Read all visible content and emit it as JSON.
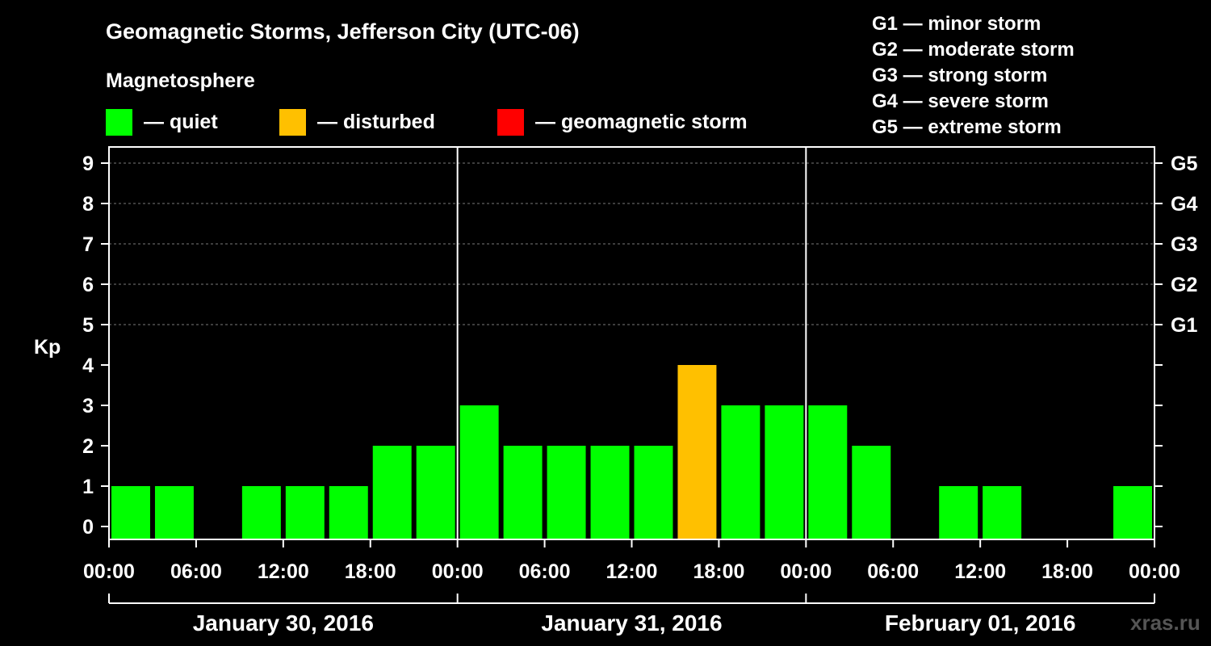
{
  "title": "Geomagnetic Storms, Jefferson City (UTC-06)",
  "subtitle": "Magnetosphere",
  "legend": [
    {
      "label": "— quiet",
      "color": "#00ff00"
    },
    {
      "label": "— disturbed",
      "color": "#ffc000"
    },
    {
      "label": "— geomagnetic storm",
      "color": "#ff0000"
    }
  ],
  "g_scale_legend": [
    "G1 — minor storm",
    "G2 — moderate storm",
    "G3 — strong storm",
    "G4 — severe storm",
    "G5 — extreme storm"
  ],
  "watermark": "xras.ru",
  "chart_data": {
    "type": "bar",
    "ylabel": "Kp",
    "ylim": [
      0,
      9
    ],
    "yticks": [
      0,
      1,
      2,
      3,
      4,
      5,
      6,
      7,
      8,
      9
    ],
    "right_axis_labels": [
      {
        "kp": 5,
        "label": "G1"
      },
      {
        "kp": 6,
        "label": "G2"
      },
      {
        "kp": 7,
        "label": "G3"
      },
      {
        "kp": 8,
        "label": "G4"
      },
      {
        "kp": 9,
        "label": "G5"
      }
    ],
    "x_tick_labels": [
      "00:00",
      "06:00",
      "12:00",
      "18:00",
      "00:00",
      "06:00",
      "12:00",
      "18:00",
      "00:00",
      "06:00",
      "12:00",
      "18:00",
      "00:00"
    ],
    "days": [
      "January 30, 2016",
      "January 31, 2016",
      "February 01, 2016"
    ],
    "bar_interval_hours": 3,
    "values": [
      1,
      1,
      0,
      1,
      1,
      1,
      2,
      2,
      3,
      2,
      2,
      2,
      2,
      4,
      3,
      3,
      3,
      2,
      0,
      1,
      1,
      0,
      0,
      1
    ],
    "colors": {
      "quiet": "#00ff00",
      "disturbed": "#ffc000",
      "storm": "#ff0000"
    },
    "thresholds": {
      "disturbed": 4,
      "storm": 5
    }
  }
}
